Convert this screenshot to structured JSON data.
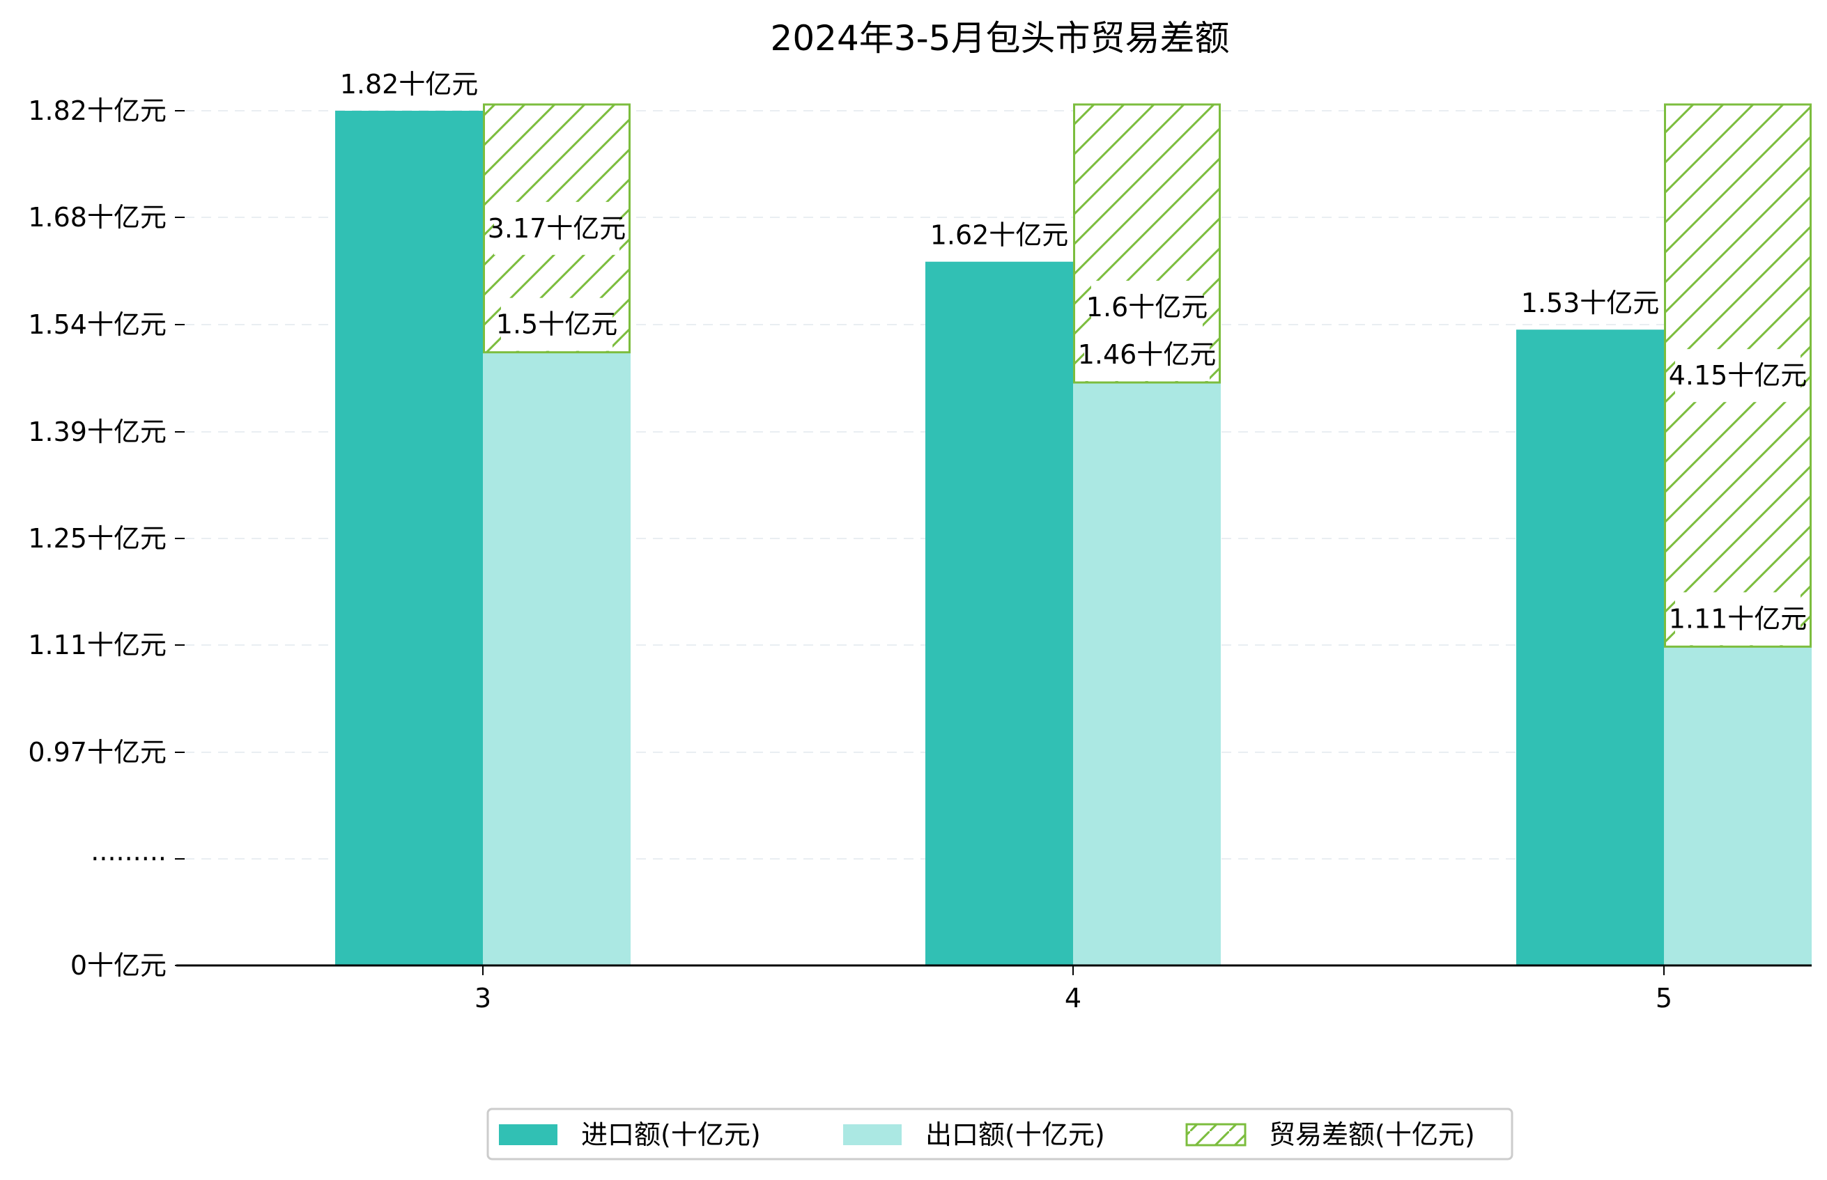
{
  "chart_data": {
    "type": "bar",
    "title": "2024年3-5月包头市贸易差额",
    "categories": [
      "3",
      "4",
      "5"
    ],
    "series": [
      {
        "name": "进口额(十亿元)",
        "values": [
          1.82,
          1.62,
          1.53
        ],
        "labels": [
          "1.82十亿元",
          "1.62十亿元",
          "1.53十亿元"
        ],
        "color": "#31c0b4"
      },
      {
        "name": "出口额(十亿元)",
        "values": [
          1.5,
          1.46,
          1.11
        ],
        "labels": [
          "1.5十亿元",
          "1.46十亿元",
          "1.11十亿元"
        ],
        "color": "#abe8e3"
      },
      {
        "name": "贸易差额(十亿元)",
        "values": [
          3.17,
          1.6,
          4.15
        ],
        "labels": [
          "3.17十亿元",
          "1.6十亿元",
          "4.15十亿元"
        ],
        "color": "#7cbd3e",
        "stacked_on": "出口额(十亿元)",
        "pattern": "hatch"
      }
    ],
    "y_tick_labels": [
      "0十亿元",
      "·········",
      "0.97十亿元",
      "1.11十亿元",
      "1.25十亿元",
      "1.39十亿元",
      "1.54十亿元",
      "1.68十亿元",
      "1.82十亿元"
    ],
    "axis_break": true,
    "grid": "horizontal-dashed",
    "legend_position": "bottom-center",
    "xlabel": "",
    "ylabel": ""
  }
}
